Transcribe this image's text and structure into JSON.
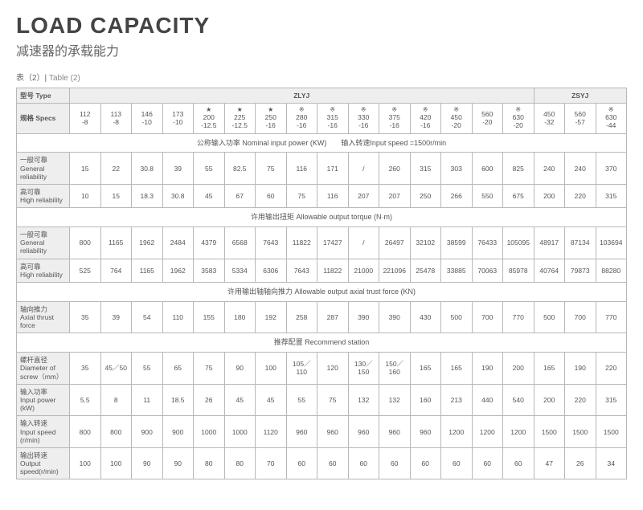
{
  "title": "LOAD CAPACITY",
  "subtitle": "减速器的承载能力",
  "caption_zh": "表（2）|",
  "caption_en": "Table (2)",
  "headers": {
    "type": "型号 Type",
    "zlyj": "ZLYJ",
    "zsyj": "ZSYJ",
    "specs": "规格 Specs"
  },
  "specs": [
    {
      "mark": "",
      "a": "112",
      "b": "-8"
    },
    {
      "mark": "",
      "a": "113",
      "b": "-8"
    },
    {
      "mark": "",
      "a": "146",
      "b": "-10"
    },
    {
      "mark": "",
      "a": "173",
      "b": "-10"
    },
    {
      "mark": "★",
      "a": "200",
      "b": "-12.5"
    },
    {
      "mark": "★",
      "a": "225",
      "b": "-12.5"
    },
    {
      "mark": "★",
      "a": "250",
      "b": "-16"
    },
    {
      "mark": "※",
      "a": "280",
      "b": "-16"
    },
    {
      "mark": "※",
      "a": "315",
      "b": "-16"
    },
    {
      "mark": "※",
      "a": "330",
      "b": "-16"
    },
    {
      "mark": "※",
      "a": "375",
      "b": "-16"
    },
    {
      "mark": "※",
      "a": "420",
      "b": "-16"
    },
    {
      "mark": "※",
      "a": "450",
      "b": "-20"
    },
    {
      "mark": "",
      "a": "560",
      "b": "-20"
    },
    {
      "mark": "※",
      "a": "630",
      "b": "-20"
    },
    {
      "mark": "",
      "a": "450",
      "b": "-32"
    },
    {
      "mark": "",
      "a": "560",
      "b": "-57"
    },
    {
      "mark": "※",
      "a": "630",
      "b": "-44"
    }
  ],
  "sections": {
    "s1": "公称输入功率 Nominal input power (KW)　　输入转速Input speed =1500r/min",
    "s2": "许用输出扭矩 Allowable output torque (N·m)",
    "s3": "许用输出轴轴向推力 Allowable output axial trust force (KN)",
    "s4": "推荐配置 Recommend station"
  },
  "rows": {
    "r1": {
      "label": "一般可靠\nGeneral reliability",
      "v": [
        "15",
        "22",
        "30.8",
        "39",
        "55",
        "82.5",
        "75",
        "116",
        "171",
        "/",
        "260",
        "315",
        "303",
        "600",
        "825",
        "240",
        "240",
        "370"
      ]
    },
    "r2": {
      "label": "高可靠\nHigh reliability",
      "v": [
        "10",
        "15",
        "18.3",
        "30.8",
        "45",
        "67",
        "60",
        "75",
        "116",
        "207",
        "207",
        "250",
        "266",
        "550",
        "675",
        "200",
        "220",
        "315"
      ]
    },
    "r3": {
      "label": "一般可靠\nGeneral reliability",
      "v": [
        "800",
        "1165",
        "1962",
        "2484",
        "4379",
        "6568",
        "7643",
        "11822",
        "17427",
        "/",
        "26497",
        "32102",
        "38599",
        "76433",
        "105095",
        "48917",
        "87134",
        "103694"
      ]
    },
    "r4": {
      "label": "高可靠\nHigh reliability",
      "v": [
        "525",
        "764",
        "1165",
        "1962",
        "3583",
        "5334",
        "6306",
        "7643",
        "11822",
        "21000",
        "221096",
        "25478",
        "33885",
        "70063",
        "85978",
        "40764",
        "79873",
        "88280"
      ]
    },
    "r5": {
      "label": "轴向推力\nAxial thrust force",
      "v": [
        "35",
        "39",
        "54",
        "110",
        "155",
        "180",
        "192",
        "258",
        "287",
        "390",
        "390",
        "430",
        "500",
        "700",
        "770",
        "500",
        "700",
        "770"
      ]
    },
    "r6": {
      "label": "螺杆直径\nDiameter of screw（mm）",
      "v": [
        "35",
        "45／50",
        "55",
        "65",
        "75",
        "90",
        "100",
        "105／110",
        "120",
        "130／150",
        "150／160",
        "165",
        "165",
        "190",
        "200",
        "165",
        "190",
        "220"
      ]
    },
    "r7": {
      "label": "输入功率\nInput power (kW)",
      "v": [
        "5.5",
        "8",
        "11",
        "18.5",
        "26",
        "45",
        "45",
        "55",
        "75",
        "132",
        "132",
        "160",
        "213",
        "440",
        "540",
        "200",
        "220",
        "315"
      ]
    },
    "r8": {
      "label": "输入转速\nInput speed (r/min)",
      "v": [
        "800",
        "800",
        "900",
        "900",
        "1000",
        "1000",
        "1120",
        "960",
        "960",
        "960",
        "960",
        "960",
        "1200",
        "1200",
        "1200",
        "1500",
        "1500",
        "1500"
      ]
    },
    "r9": {
      "label": "输出转速\nOutput speed(r/min)",
      "v": [
        "100",
        "100",
        "90",
        "90",
        "80",
        "80",
        "70",
        "60",
        "60",
        "60",
        "60",
        "60",
        "60",
        "60",
        "60",
        "47",
        "26",
        "34"
      ]
    }
  }
}
